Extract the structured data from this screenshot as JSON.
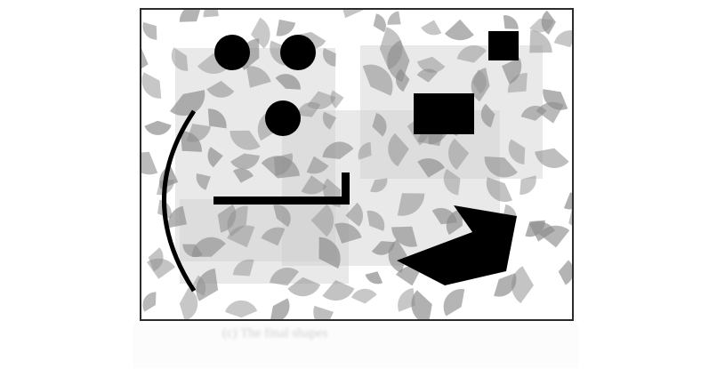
{
  "figure": {
    "frame_color": "#2b2b2b",
    "background_color": "#ffffff",
    "wedge_color": "#8c8c8c",
    "rectangle_color": "#cfcfcf",
    "shape_color": "#000000"
  },
  "caption": {
    "text": "(c) The final shapes"
  }
}
